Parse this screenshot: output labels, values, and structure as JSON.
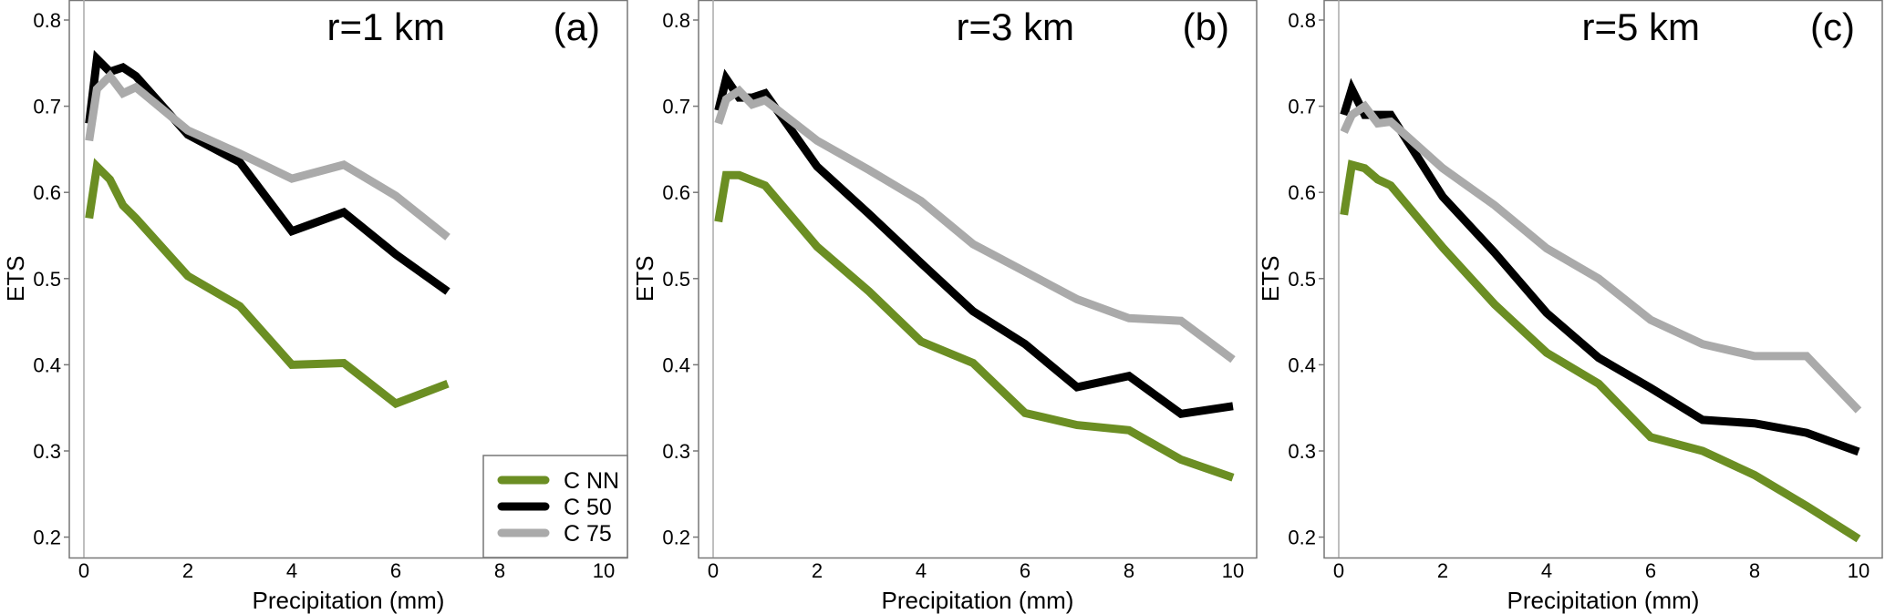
{
  "chart_data": [
    {
      "type": "line",
      "title": "r=1 km",
      "panel_label": "(a)",
      "xlabel": "Precipitation (mm)",
      "ylabel": "ETS",
      "xlim": [
        -0.4,
        10.4
      ],
      "ylim": [
        0.175,
        0.825
      ],
      "xticks": [
        "0",
        "2",
        "4",
        "6",
        "8",
        "10"
      ],
      "yticks": [
        "0.2",
        "0.3",
        "0.4",
        "0.5",
        "0.6",
        "0.7",
        "0.8"
      ],
      "legend": {
        "placement": "bottom-right",
        "entries": [
          "C NN",
          "C 50",
          "C 75"
        ]
      },
      "x": [
        0.1,
        0.25,
        0.5,
        0.75,
        1,
        2,
        3,
        4,
        5,
        6,
        7
      ],
      "series": [
        {
          "name": "C NN",
          "color": "#6b8e23",
          "values": [
            0.57,
            0.63,
            0.615,
            0.585,
            0.57,
            0.503,
            0.468,
            0.4,
            0.402,
            0.355,
            0.378
          ]
        },
        {
          "name": "C 50",
          "color": "#000000",
          "values": [
            0.68,
            0.755,
            0.74,
            0.745,
            0.735,
            0.667,
            0.635,
            0.555,
            0.577,
            0.528,
            0.485
          ]
        },
        {
          "name": "C 75",
          "color": "#aaaaaa",
          "values": [
            0.66,
            0.72,
            0.735,
            0.715,
            0.722,
            0.672,
            0.645,
            0.616,
            0.632,
            0.596,
            0.548
          ]
        }
      ]
    },
    {
      "type": "line",
      "title": "r=3 km",
      "panel_label": "(b)",
      "xlabel": "Precipitation (mm)",
      "ylabel": "ETS",
      "xlim": [
        -0.4,
        10.4
      ],
      "ylim": [
        0.175,
        0.825
      ],
      "xticks": [
        "0",
        "2",
        "4",
        "6",
        "8",
        "10"
      ],
      "yticks": [
        "0.2",
        "0.3",
        "0.4",
        "0.5",
        "0.6",
        "0.7",
        "0.8"
      ],
      "x": [
        0.1,
        0.25,
        0.5,
        0.75,
        1,
        2,
        3,
        4,
        5,
        6,
        7,
        8,
        9,
        10
      ],
      "series": [
        {
          "name": "C NN",
          "color": "#6b8e23",
          "values": [
            0.566,
            0.62,
            0.62,
            0.614,
            0.608,
            0.537,
            0.485,
            0.427,
            0.402,
            0.344,
            0.33,
            0.324,
            0.29,
            0.269
          ]
        },
        {
          "name": "C 50",
          "color": "#000000",
          "values": [
            0.695,
            0.732,
            0.71,
            0.71,
            0.715,
            0.63,
            0.575,
            0.518,
            0.462,
            0.424,
            0.374,
            0.387,
            0.343,
            0.352
          ]
        },
        {
          "name": "C 75",
          "color": "#aaaaaa",
          "values": [
            0.68,
            0.708,
            0.718,
            0.702,
            0.707,
            0.66,
            0.626,
            0.59,
            0.54,
            0.508,
            0.476,
            0.454,
            0.451,
            0.406
          ]
        }
      ]
    },
    {
      "type": "line",
      "title": "r=5 km",
      "panel_label": "(c)",
      "xlabel": "Precipitation (mm)",
      "ylabel": "ETS",
      "xlim": [
        -0.4,
        10.4
      ],
      "ylim": [
        0.175,
        0.825
      ],
      "xticks": [
        "0",
        "2",
        "4",
        "6",
        "8",
        "10"
      ],
      "yticks": [
        "0.2",
        "0.3",
        "0.4",
        "0.5",
        "0.6",
        "0.7",
        "0.8"
      ],
      "x": [
        0.1,
        0.25,
        0.5,
        0.75,
        1,
        2,
        3,
        4,
        5,
        6,
        7,
        8,
        9,
        10
      ],
      "series": [
        {
          "name": "C NN",
          "color": "#6b8e23",
          "values": [
            0.574,
            0.632,
            0.628,
            0.615,
            0.608,
            0.536,
            0.47,
            0.414,
            0.378,
            0.316,
            0.3,
            0.272,
            0.236,
            0.198
          ]
        },
        {
          "name": "C 50",
          "color": "#000000",
          "values": [
            0.69,
            0.72,
            0.69,
            0.69,
            0.69,
            0.595,
            0.53,
            0.46,
            0.408,
            0.373,
            0.336,
            0.332,
            0.321,
            0.299
          ]
        },
        {
          "name": "C 75",
          "color": "#aaaaaa",
          "values": [
            0.67,
            0.69,
            0.7,
            0.68,
            0.682,
            0.628,
            0.585,
            0.535,
            0.5,
            0.452,
            0.424,
            0.41,
            0.41,
            0.347
          ]
        }
      ]
    }
  ]
}
